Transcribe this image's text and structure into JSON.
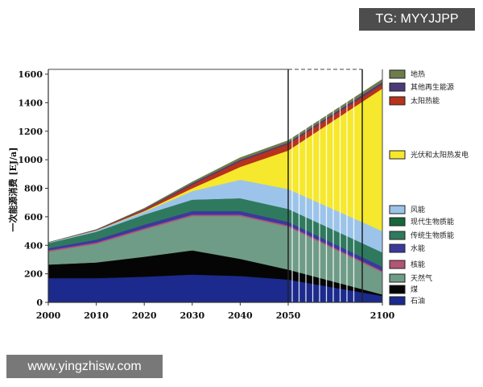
{
  "watermarks": {
    "top": "TG: MYYJJPP",
    "bottom": "www.yingzhisw.com"
  },
  "chart_data": {
    "type": "area",
    "stacked": true,
    "title": "",
    "xlabel": "",
    "ylabel": "一次能源消费 [EJ/a]",
    "ylim": [
      0,
      1600
    ],
    "yticks": [
      0,
      200,
      400,
      600,
      800,
      1000,
      1200,
      1400,
      1600
    ],
    "xticks": [
      2000,
      2010,
      2020,
      2030,
      2040,
      2050,
      2100
    ],
    "x": [
      2000,
      2010,
      2020,
      2030,
      2040,
      2050,
      2100
    ],
    "legend_placement": "right",
    "series": [
      {
        "name": "石油",
        "color": "#1b2a8c",
        "values": [
          170,
          170,
          180,
          195,
          185,
          160,
          45
        ]
      },
      {
        "name": "煤",
        "color": "#050505",
        "values": [
          95,
          110,
          140,
          170,
          120,
          70,
          10
        ]
      },
      {
        "name": "天然气",
        "color": "#6f9c86",
        "values": [
          90,
          130,
          190,
          240,
          300,
          300,
          155
        ]
      },
      {
        "name": "核能",
        "color": "#b25577",
        "values": [
          10,
          10,
          10,
          10,
          10,
          10,
          10
        ]
      },
      {
        "name": "水能",
        "color": "#3a3a9c",
        "values": [
          15,
          20,
          25,
          25,
          25,
          25,
          30
        ]
      },
      {
        "name": "传统生物质能",
        "color": "#2f7a5e",
        "values": [
          35,
          55,
          70,
          80,
          90,
          90,
          100
        ]
      },
      {
        "name": "现代生物质能",
        "color": "#16673a",
        "values": [
          0,
          0,
          0,
          0,
          0,
          0,
          0
        ]
      },
      {
        "name": "风能",
        "color": "#9cc4ea",
        "values": [
          5,
          10,
          20,
          60,
          130,
          140,
          150
        ]
      },
      {
        "name": "光伏和太阳热发电",
        "color": "#f6e82c",
        "values": [
          0,
          0,
          5,
          20,
          90,
          270,
          1000
        ]
      },
      {
        "name": "太阳热能",
        "color": "#b8321c",
        "values": [
          0,
          3,
          10,
          25,
          40,
          45,
          30
        ]
      },
      {
        "name": "其他再生能源",
        "color": "#4a3a78",
        "values": [
          0,
          2,
          5,
          10,
          10,
          10,
          15
        ]
      },
      {
        "name": "地热",
        "color": "#6e7c4c",
        "values": [
          0,
          0,
          5,
          10,
          15,
          15,
          20
        ]
      }
    ]
  }
}
